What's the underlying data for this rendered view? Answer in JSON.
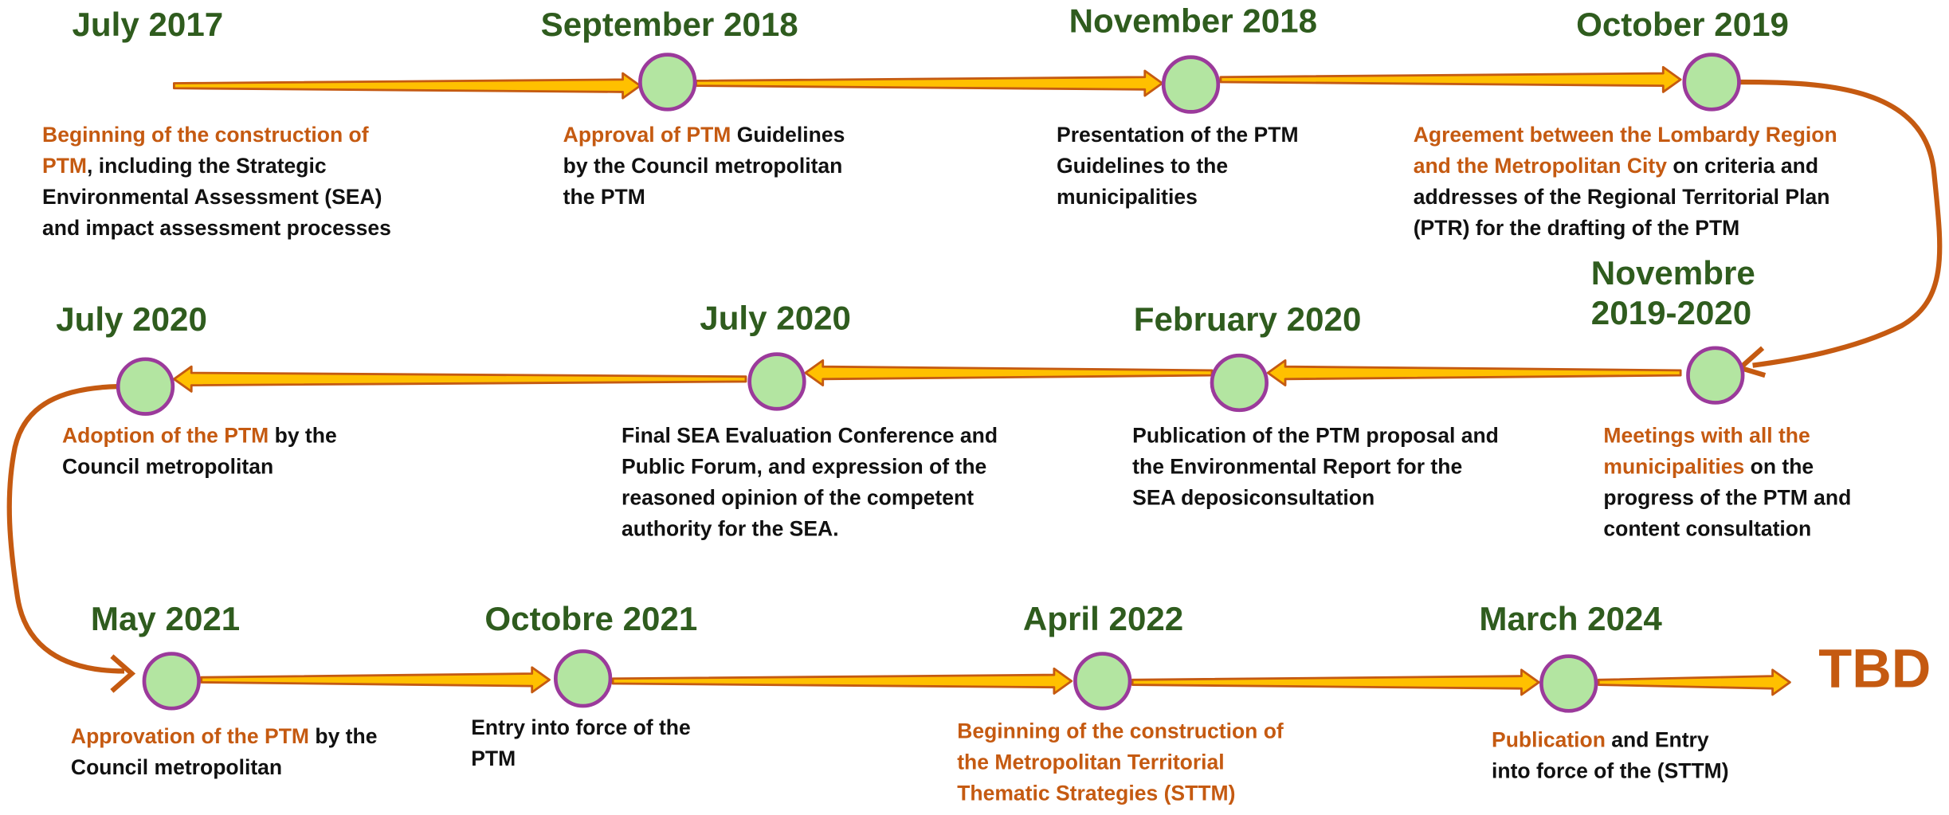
{
  "nodes": [
    {
      "date": "July 2017",
      "highlight": "Beginning of the construction of PTM",
      "text": ", including the Strategic Environmental Assessment (SEA) and impact assessment processes"
    },
    {
      "date": "September 2018",
      "highlight": "Approval of PTM",
      "text": " Guidelines by the Council metropolitan the PTM"
    },
    {
      "date": "November 2018",
      "text": "Presentation of the PTM Guidelines to the municipalities"
    },
    {
      "date": "October 2019",
      "highlight": "Agreement between the Lombardy Region and the Metropolitan City",
      "text": " on criteria and addresses of the Regional Territorial Plan (PTR) for the drafting of the PTM"
    },
    {
      "date": "Novembre 2019-2020",
      "highlight": "Meetings with all the municipalities",
      "text": " on the progress of the PTM and content consultation"
    },
    {
      "date": "February 2020",
      "text": "Publication of the PTM proposal and the Environmental Report for the SEA deposiconsultation"
    },
    {
      "date": "July 2020",
      "text": "Final SEA Evaluation Conference and Public Forum, and expression of the reasoned opinion of the competent authority for the SEA."
    },
    {
      "date": "July 2020",
      "highlight": "Adoption of the PTM",
      "text": " by the Council metropolitan"
    },
    {
      "date": "May 2021",
      "highlight": "Approvation of the PTM",
      "text": " by the Council metropolitan"
    },
    {
      "date": "Octobre 2021",
      "text": "Entry into force of the PTM"
    },
    {
      "date": "April 2022",
      "highlight": "Beginning of the construction of the Metropolitan Territorial Thematic Strategies (STTM)"
    },
    {
      "date": "March 2024",
      "highlight": "Publication",
      "text": " and Entry into force of the (STTM)"
    }
  ],
  "end_label": "TBD"
}
